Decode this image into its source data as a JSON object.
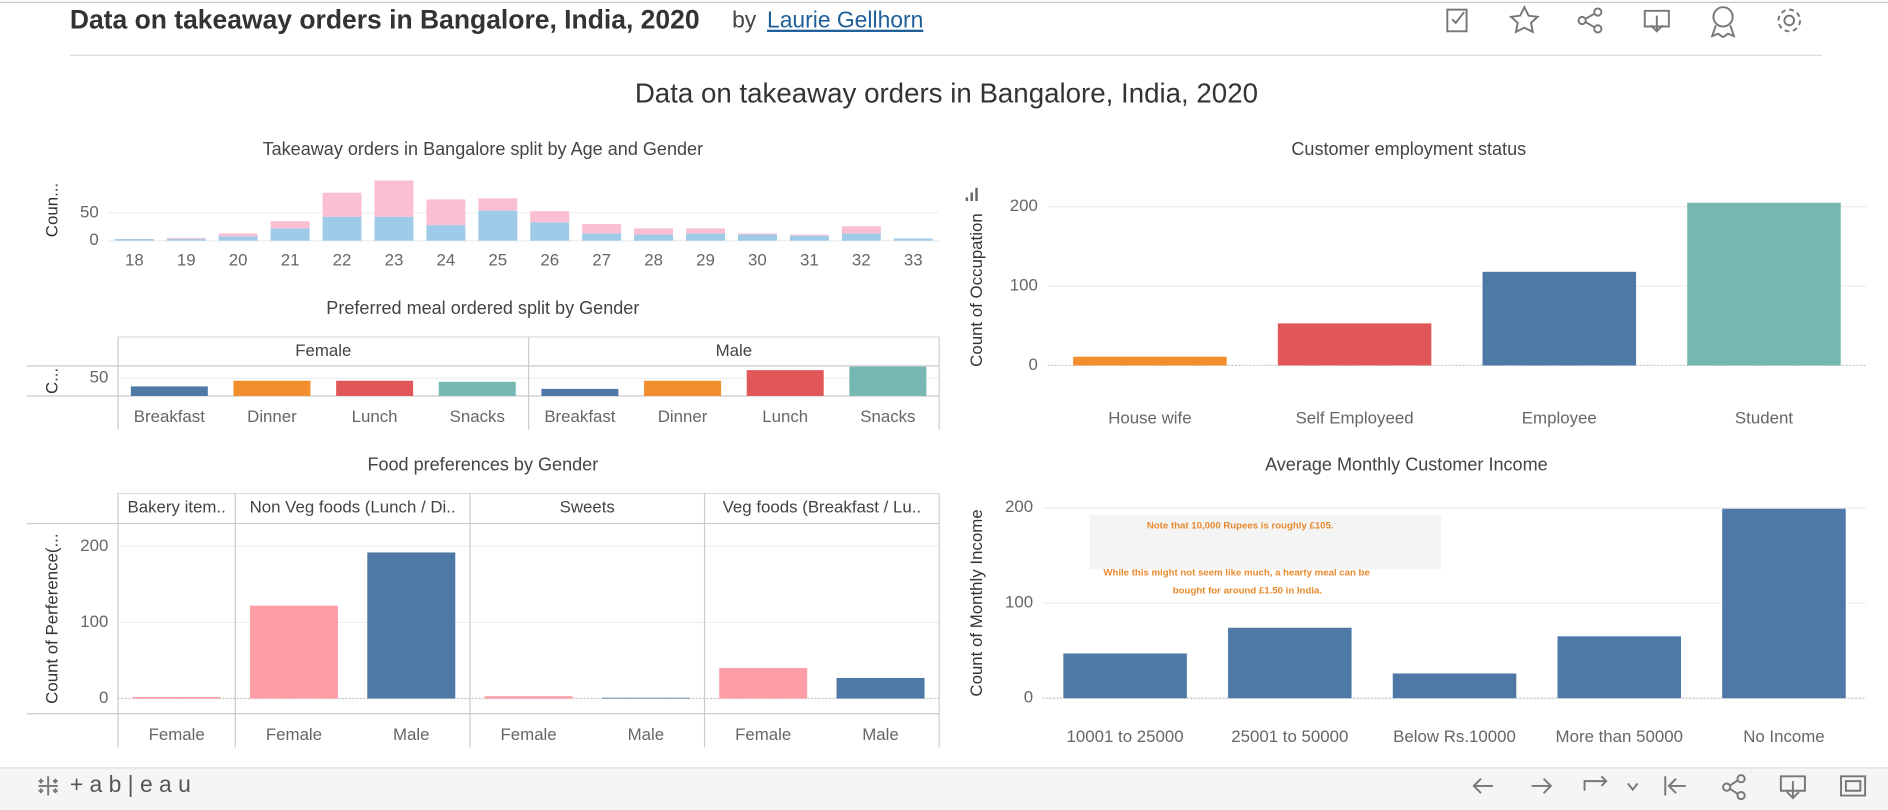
{
  "header": {
    "title": "Data on takeaway orders in Bangalore, India, 2020",
    "by": "by",
    "author": "Laurie Gellhorn"
  },
  "dashboard_title": "Data on takeaway orders in Bangalore, India, 2020",
  "footer": {
    "brand": "+ a b | e a u"
  },
  "chart_data": [
    {
      "type": "bar",
      "stacked": true,
      "title": "Takeaway orders in Bangalore split by Age and Gender",
      "y_label": "Coun...",
      "categories": [
        "18",
        "19",
        "20",
        "21",
        "22",
        "23",
        "24",
        "25",
        "26",
        "27",
        "28",
        "29",
        "30",
        "31",
        "32",
        "33"
      ],
      "series": [
        {
          "color": "#a0cbe8",
          "values": [
            3,
            3,
            8,
            22,
            43,
            43,
            28,
            54,
            33,
            13,
            11,
            13,
            11,
            9,
            13,
            4
          ]
        },
        {
          "color": "#fabfd2",
          "values": [
            0,
            2,
            5,
            13,
            43,
            65,
            46,
            22,
            20,
            17,
            11,
            9,
            2,
            2,
            13,
            0
          ]
        }
      ],
      "ylim": [
        0,
        110
      ],
      "yticks": [
        0,
        50
      ],
      "grid": true
    },
    {
      "type": "bar",
      "title": "Preferred meal ordered split by Gender",
      "y_label": "C...",
      "categories": [
        "Breakfast",
        "Dinner",
        "Lunch",
        "Snacks"
      ],
      "colors": [
        "#4e79a7",
        "#f28e2b",
        "#e15759",
        "#76b7b2"
      ],
      "panels": [
        {
          "name": "Female",
          "values": [
            27,
            43,
            43,
            40
          ]
        },
        {
          "name": "Male",
          "values": [
            20,
            43,
            73,
            83
          ]
        }
      ],
      "ylim": [
        0,
        85
      ],
      "yticks": [
        50
      ],
      "grid": true
    },
    {
      "type": "bar",
      "title": "Customer employment status",
      "y_label": "Count of Occupation",
      "categories": [
        "House wife",
        "Self Employeed",
        "Employee",
        "Student"
      ],
      "values": [
        11,
        53,
        118,
        205
      ],
      "colors": [
        "#f28e2b",
        "#e15759",
        "#4e79a7",
        "#76b7b2"
      ],
      "ylim": [
        -40,
        230
      ],
      "yticks": [
        0,
        100,
        200
      ],
      "grid": true
    },
    {
      "type": "bar",
      "title": "Food preferences by Gender",
      "y_label": "Count of Perference(...",
      "colors": [
        "#ff9da7",
        "#4e79a7"
      ],
      "panels": [
        {
          "name": "Bakery item..",
          "categories": [
            "Female"
          ],
          "values": [
            2
          ]
        },
        {
          "name": "Non Veg foods (Lunch / Di..",
          "categories": [
            "Female",
            "Male"
          ],
          "values": [
            122,
            192
          ]
        },
        {
          "name": "Sweets",
          "categories": [
            "Female",
            "Male"
          ],
          "values": [
            3,
            1
          ]
        },
        {
          "name": "Veg foods (Breakfast / Lu..",
          "categories": [
            "Female",
            "Male"
          ],
          "values": [
            40,
            27
          ]
        }
      ],
      "ylim": [
        -20,
        230
      ],
      "yticks": [
        0,
        100,
        200
      ],
      "grid": true
    },
    {
      "type": "bar",
      "title": "Average Monthly Customer Income",
      "y_label": "Count of Monthly Income",
      "categories": [
        "10001 to 25000",
        "25001 to 50000",
        "Below Rs.10000",
        "More than 50000",
        "No Income"
      ],
      "values": [
        47,
        74,
        26,
        65,
        199
      ],
      "color": "#4e79a7",
      "annotation": [
        "Note that 10,000 Rupees is roughly £105.",
        "While this might not seem like much, a hearty meal can be",
        "bought for around £1.50 in India."
      ],
      "ylim": [
        -15,
        215
      ],
      "yticks": [
        0,
        100,
        200
      ],
      "grid": true
    }
  ]
}
